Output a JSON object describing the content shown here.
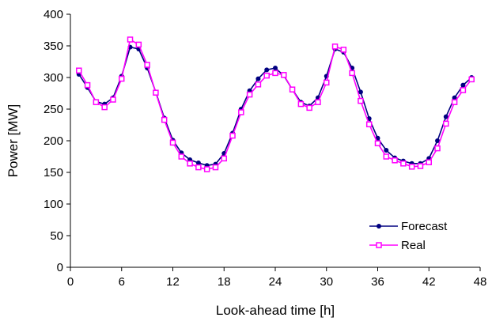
{
  "chart_data": {
    "type": "line",
    "xlabel": "Look-ahead time [h]",
    "ylabel": "Power [MW]",
    "xlim": [
      0,
      48
    ],
    "ylim": [
      0,
      400
    ],
    "xticks": [
      0,
      6,
      12,
      18,
      24,
      30,
      36,
      42,
      48
    ],
    "yticks": [
      0,
      50,
      100,
      150,
      200,
      250,
      300,
      350,
      400
    ],
    "xtick_labels": [
      "0",
      "6",
      "12",
      "18",
      "24",
      "30",
      "36",
      "42",
      "48"
    ],
    "ytick_labels": [
      "0",
      "50",
      "100",
      "150",
      "200",
      "250",
      "300",
      "350",
      "400"
    ],
    "grid": false,
    "legend_position": "bottom-right",
    "x": [
      1,
      2,
      3,
      4,
      5,
      6,
      7,
      8,
      9,
      10,
      11,
      12,
      13,
      14,
      15,
      16,
      17,
      18,
      19,
      20,
      21,
      22,
      23,
      24,
      25,
      26,
      27,
      28,
      29,
      30,
      31,
      32,
      33,
      34,
      35,
      36,
      37,
      38,
      39,
      40,
      41,
      42,
      43,
      44,
      45,
      46,
      47
    ],
    "series": [
      {
        "name": "Forecast",
        "color": "#000080",
        "marker": "circle",
        "values": [
          305,
          284,
          262,
          258,
          268,
          302,
          348,
          345,
          315,
          277,
          236,
          201,
          181,
          170,
          165,
          161,
          163,
          180,
          212,
          250,
          279,
          298,
          312,
          315,
          303,
          281,
          261,
          255,
          268,
          302,
          345,
          340,
          315,
          277,
          235,
          204,
          185,
          173,
          168,
          164,
          164,
          172,
          200,
          238,
          268,
          288,
          300
        ]
      },
      {
        "name": "Real",
        "color": "#ff00ff",
        "marker": "square",
        "values": [
          311,
          288,
          261,
          253,
          265,
          298,
          360,
          352,
          320,
          276,
          233,
          197,
          175,
          164,
          158,
          155,
          158,
          172,
          208,
          245,
          273,
          289,
          303,
          307,
          304,
          281,
          258,
          252,
          261,
          292,
          349,
          344,
          307,
          263,
          226,
          196,
          175,
          169,
          164,
          159,
          160,
          166,
          188,
          227,
          261,
          280,
          297
        ]
      }
    ]
  }
}
